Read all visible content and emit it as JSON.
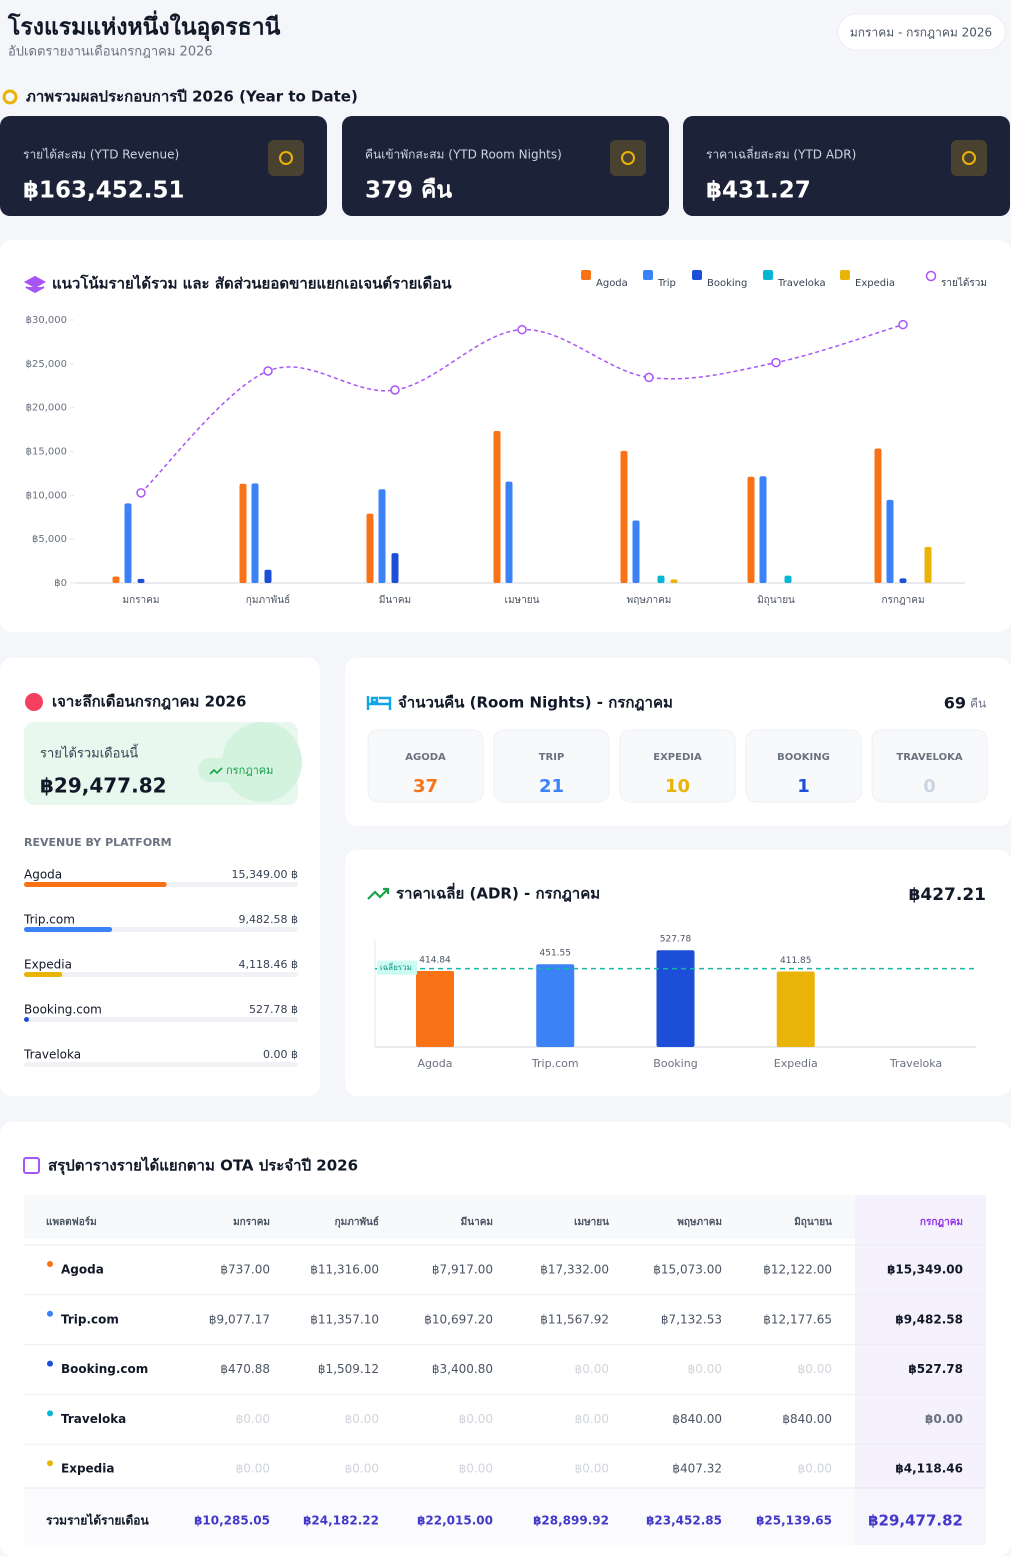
{
  "header": {
    "title": "โรงแรมแห่งหนึ่งในอุดรธานี",
    "subtitle": "อัปเดตรายงานเดือนกรกฎาคม 2026",
    "period": "มกราคม - กรกฎาคม 2026"
  },
  "overview": {
    "title": "ภาพรวมผลประกอบการปี 2026 (Year to Date)",
    "cards": [
      {
        "label": "รายได้สะสม (YTD Revenue)",
        "value": "฿163,452.51"
      },
      {
        "label": "คืนเข้าพักสะสม (YTD Room Nights)",
        "value": "379 คืน"
      },
      {
        "label": "ราคาเฉลี่ยสะสม (YTD ADR)",
        "value": "฿431.27"
      }
    ]
  },
  "chart_data": [
    {
      "type": "bar",
      "title": "แนวโน้มรายได้รวม และ สัดส่วนยอดขายแยกเอเจนต์รายเดือน",
      "categories": [
        "มกราคม",
        "กุมภาพันธ์",
        "มีนาคม",
        "เมษายน",
        "พฤษภาคม",
        "มิถุนายน",
        "กรกฎาคม"
      ],
      "series": [
        {
          "name": "Agoda",
          "type": "bar",
          "color": "#f97316",
          "values": [
            737,
            11316,
            7917,
            17332,
            15073,
            12122,
            15349
          ]
        },
        {
          "name": "Trip",
          "type": "bar",
          "color": "#3b82f6",
          "values": [
            9077.17,
            11357.1,
            10697.2,
            11567.92,
            7132.53,
            12177.65,
            9482.58
          ]
        },
        {
          "name": "Booking",
          "type": "bar",
          "color": "#1d4ed8",
          "values": [
            470.88,
            1509.12,
            3400.8,
            0,
            0,
            0,
            527.78
          ]
        },
        {
          "name": "Traveloka",
          "type": "bar",
          "color": "#06b6d4",
          "values": [
            0,
            0,
            0,
            0,
            840,
            840,
            0
          ]
        },
        {
          "name": "Expedia",
          "type": "bar",
          "color": "#eab308",
          "values": [
            0,
            0,
            0,
            0,
            407.32,
            0,
            4118.46
          ]
        },
        {
          "name": "รายได้รวม",
          "type": "line",
          "color": "#a855f7",
          "values": [
            10285.05,
            24182.22,
            22015.0,
            28899.92,
            23452.85,
            25139.65,
            29477.82
          ]
        }
      ],
      "ylim": [
        0,
        30000
      ],
      "yticks": [
        {
          "value": 0,
          "label": "฿0"
        },
        {
          "value": 5000,
          "label": "฿5,000"
        },
        {
          "value": 10000,
          "label": "฿10,000"
        },
        {
          "value": 15000,
          "label": "฿15,000"
        },
        {
          "value": 20000,
          "label": "฿20,000"
        },
        {
          "value": 25000,
          "label": "฿25,000"
        },
        {
          "value": 30000,
          "label": "฿30,000"
        }
      ],
      "grid": false,
      "legend": "top-right"
    },
    {
      "type": "bar",
      "title": "ราคาเฉลี่ย (ADR) - กรกฎาคม",
      "total_label": "฿427.21",
      "categories": [
        "Agoda",
        "Trip.com",
        "Booking",
        "Expedia",
        "Traveloka"
      ],
      "values": [
        414.84,
        451.55,
        527.78,
        411.85,
        null
      ],
      "colors": [
        "#f97316",
        "#3b82f6",
        "#1d4ed8",
        "#eab308",
        "#06b6d4"
      ],
      "ylim": [
        0,
        600
      ],
      "average": 427.21,
      "average_label": "เฉลี่ยรวม"
    }
  ],
  "month_detail": {
    "title": "เจาะลึกเดือนกรกฎาคม 2026",
    "revenue_label": "รายได้รวมเดือนนี้",
    "revenue": "฿29,477.82",
    "badge": "กรกฎาคม",
    "platform_title": "REVENUE BY PLATFORM",
    "platforms": [
      {
        "name": "Agoda",
        "color": "#f97316",
        "value": 15349,
        "label": "15,349.00 ฿"
      },
      {
        "name": "Trip.com",
        "color": "#3b82f6",
        "value": 9482.58,
        "label": "9,482.58 ฿"
      },
      {
        "name": "Expedia",
        "color": "#eab308",
        "value": 4118.46,
        "label": "4,118.46 ฿"
      },
      {
        "name": "Booking.com",
        "color": "#1d4ed8",
        "value": 527.78,
        "label": "527.78 ฿"
      },
      {
        "name": "Traveloka",
        "color": "#06b6d4",
        "value": 0,
        "label": "0.00 ฿"
      }
    ]
  },
  "room_nights": {
    "title": "จำนวนคืน (Room Nights) - กรกฎาคม",
    "total": 69,
    "unit": "คืน",
    "items": [
      {
        "name": "AGODA",
        "value": 37,
        "color": "#f97316"
      },
      {
        "name": "TRIP",
        "value": 21,
        "color": "#3b82f6"
      },
      {
        "name": "EXPEDIA",
        "value": 10,
        "color": "#eab308"
      },
      {
        "name": "BOOKING",
        "value": 1,
        "color": "#1d4ed8"
      },
      {
        "name": "TRAVELOKA",
        "value": 0,
        "color": "#cbd5e1"
      }
    ]
  },
  "table": {
    "title": "สรุปตารางรายได้แยกตาม OTA ประจำปี 2026",
    "header": [
      "แพลตฟอร์ม",
      "มกราคม",
      "กุมภาพันธ์",
      "มีนาคม",
      "เมษายน",
      "พฤษภาคม",
      "มิถุนายน",
      "กรกฎาคม"
    ],
    "rows": [
      {
        "name": "Agoda",
        "color": "#f97316",
        "cells": [
          "฿737.00",
          "฿11,316.00",
          "฿7,917.00",
          "฿17,332.00",
          "฿15,073.00",
          "฿12,122.00",
          "฿15,349.00"
        ]
      },
      {
        "name": "Trip.com",
        "color": "#3b82f6",
        "cells": [
          "฿9,077.17",
          "฿11,357.10",
          "฿10,697.20",
          "฿11,567.92",
          "฿7,132.53",
          "฿12,177.65",
          "฿9,482.58"
        ]
      },
      {
        "name": "Booking.com",
        "color": "#1d4ed8",
        "cells": [
          "฿470.88",
          "฿1,509.12",
          "฿3,400.80",
          "฿0.00",
          "฿0.00",
          "฿0.00",
          "฿527.78"
        ]
      },
      {
        "name": "Traveloka",
        "color": "#06b6d4",
        "cells": [
          "฿0.00",
          "฿0.00",
          "฿0.00",
          "฿0.00",
          "฿840.00",
          "฿840.00",
          "฿0.00"
        ]
      },
      {
        "name": "Expedia",
        "color": "#eab308",
        "cells": [
          "฿0.00",
          "฿0.00",
          "฿0.00",
          "฿0.00",
          "฿407.32",
          "฿0.00",
          "฿4,118.46"
        ]
      }
    ],
    "footer": {
      "name": "รวมรายได้รายเดือน",
      "cells": [
        "฿10,285.05",
        "฿24,182.22",
        "฿22,015.00",
        "฿28,899.92",
        "฿23,452.85",
        "฿25,139.65",
        "฿29,477.82"
      ]
    }
  }
}
